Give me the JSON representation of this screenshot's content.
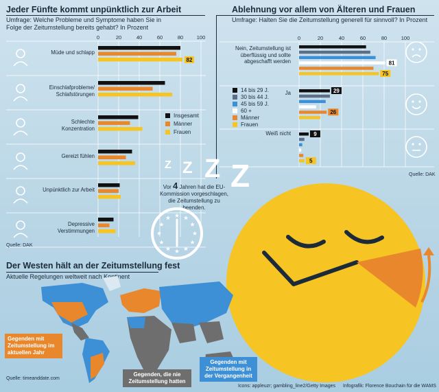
{
  "colors": {
    "insgesamt": "#111111",
    "maenner": "#e8872b",
    "frauen": "#f6c423",
    "age14_29": "#111111",
    "age30_44": "#5b6f87",
    "age45_59": "#3d8fd6",
    "age60": "#ffffff",
    "highlight": "#f6c423",
    "map_current": "#e8872b",
    "map_past": "#3d8fd6",
    "map_never": "#6e6e6e"
  },
  "left_chart": {
    "title": "Jeder Fünfte kommt unpünktlich zur Arbeit",
    "subtitle": "Umfrage: Welche Probleme und Symptome haben Sie in Folge der Zeitumstellung bereits gehabt? In Prozent",
    "source": "Quelle: DAK",
    "icons": [
      "tired-person-icon",
      "pills-icon",
      "laptop-person-icon",
      "angry-face-icon",
      "running-clock-icon",
      "sleeping-person-icon"
    ]
  },
  "right_chart": {
    "title": "Ablehnung vor allem von Älteren und Frauen",
    "subtitle": "Umfrage: Halten Sie die Zeitumstellung generell für sinnvoll? In Prozent",
    "source": "Quelle: DAK",
    "icons": [
      "sad-face-icon",
      "happy-face-icon",
      "neutral-face-icon"
    ]
  },
  "middle": {
    "text_before": "Vor",
    "years": "4",
    "text_after": "Jahren hat die EU-Kommission vorgeschlagen, die Zeitumstellung zu beenden.",
    "zzz": "Z Z Z Z"
  },
  "map": {
    "title": "Der Westen hält an der Zeitumstellung fest",
    "subtitle": "Aktuelle Regelungen weltweit nach Kontinent",
    "legend_current": "Gegenden mit Zeitumstellung im aktuellen Jahr",
    "legend_never": "Gegenden, die nie Zeitumstellung hatten",
    "legend_past": "Gegenden mit Zeitumstellung in der Vergangenheit",
    "source": "Quelle: timeanddate.com"
  },
  "footer": {
    "icons_credit": "Icons: applеuzr; gambling_line2/Getty Images",
    "graphic_credit": "Infografik: Florence Bouchain für die WAMS"
  },
  "chart_data": [
    {
      "type": "bar",
      "title": "Jeder Fünfte kommt unpünktlich zur Arbeit",
      "subtitle": "Umfrage: Welche Probleme und Symptome haben Sie in Folge der Zeitumstellung bereits gehabt? In Prozent",
      "orientation": "horizontal",
      "categories": [
        "Müde und schlapp",
        "Einschlafprobleme/ Schlafstörungen",
        "Schlechte Konzentration",
        "Gereizt fühlen",
        "Unpünktlich zur Arbeit",
        "Depressive Verstimmungen"
      ],
      "series": [
        {
          "name": "Insgesamt",
          "values": [
            80,
            65,
            39,
            33,
            21,
            15
          ]
        },
        {
          "name": "Männer",
          "values": [
            76,
            53,
            31,
            27,
            20,
            11
          ]
        },
        {
          "name": "Frauen",
          "values": [
            82,
            72,
            43,
            36,
            22,
            17
          ]
        }
      ],
      "data_labels": [
        {
          "category": "Müde und schlapp",
          "series": "Frauen",
          "value": "82"
        }
      ],
      "xlim": [
        0,
        100
      ],
      "xticks": [
        0,
        20,
        40,
        60,
        80,
        100
      ],
      "legend": "right",
      "source": "Quelle: DAK"
    },
    {
      "type": "bar",
      "title": "Ablehnung vor allem von Älteren und Frauen",
      "subtitle": "Umfrage: Halten Sie die Zeitumstellung generell für sinnvoll? In Prozent",
      "orientation": "horizontal",
      "categories": [
        "Nein, Zeitumstellung ist überflüssig und sollte abgeschafft werden",
        "Ja",
        "Weiß nicht"
      ],
      "series": [
        {
          "name": "14 bis 29 J.",
          "values": [
            63,
            29,
            9
          ]
        },
        {
          "name": "30 bis 44 J.",
          "values": [
            67,
            29,
            5
          ]
        },
        {
          "name": "45 bis 59 J.",
          "values": [
            72,
            25,
            3
          ]
        },
        {
          "name": "60 +",
          "values": [
            81,
            16,
            2
          ]
        },
        {
          "name": "Männer",
          "values": [
            70,
            26,
            4
          ]
        },
        {
          "name": "Frauen",
          "values": [
            75,
            20,
            5
          ]
        }
      ],
      "data_labels": [
        {
          "category": "Nein, Zeitumstellung ist überflüssig und sollte abgeschafft werden",
          "series": "60 +",
          "value": "81"
        },
        {
          "category": "Nein, Zeitumstellung ist überflüssig und sollte abgeschafft werden",
          "series": "Frauen",
          "value": "75"
        },
        {
          "category": "Ja",
          "series": "14 bis 29 J.",
          "value": "29"
        },
        {
          "category": "Ja",
          "series": "Männer",
          "value": "26"
        },
        {
          "category": "Weiß nicht",
          "series": "14 bis 29 J.",
          "value": "9"
        },
        {
          "category": "Weiß nicht",
          "series": "Frauen",
          "value": "5"
        }
      ],
      "xlim": [
        0,
        100
      ],
      "xticks": [
        0,
        20,
        40,
        60,
        80,
        100
      ],
      "legend": "left",
      "source": "Quelle: DAK"
    }
  ]
}
